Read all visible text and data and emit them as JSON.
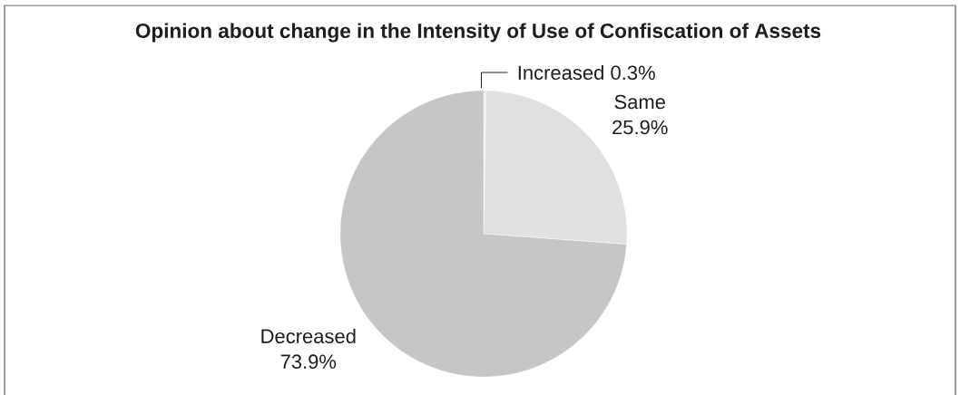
{
  "chart_data": {
    "type": "pie",
    "title": "Opinion about change in the Intensity of Use of Confiscation of Assets",
    "categories": [
      "Increased",
      "Same",
      "Decreased"
    ],
    "values": [
      0.3,
      25.9,
      73.9
    ],
    "colors": [
      "#eeeeee",
      "#e0e0e0",
      "#c6c6c6"
    ],
    "value_labels": [
      "0.3%",
      "25.9%",
      "73.9%"
    ]
  }
}
